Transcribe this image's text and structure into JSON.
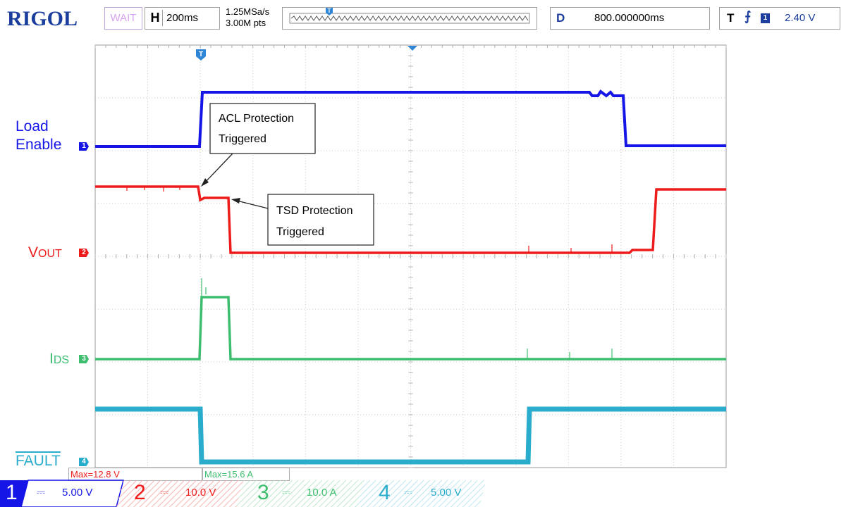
{
  "topbar": {
    "brand": "RIGOL",
    "status": "WAIT",
    "horizontal_key": "H",
    "horizontal_scale": "200ms",
    "sample_rate": "1.25MSa/s",
    "memory_depth": "3.00M pts",
    "delay_key": "D",
    "delay_value": "800.000000ms",
    "trigger_key": "T",
    "trigger_channel": "1",
    "trigger_level": "2.40 V"
  },
  "labels": {
    "load_line1": "Load",
    "load_line2": "Enable",
    "vout_v": "V",
    "vout_sub": "OUT",
    "ids_i": "I",
    "ids_sub": "DS",
    "fault": "FAULT"
  },
  "markers": {
    "ch1": "1",
    "ch2": "2",
    "ch3": "3",
    "ch4": "4",
    "trigger": "T"
  },
  "annotations": {
    "acl_line1": "ACL Protection",
    "acl_line2": "Triggered",
    "tsd_line1": "TSD Protection",
    "tsd_line2": "Triggered"
  },
  "measurements": {
    "ch2_max": "Max=12.8 V",
    "ch3_max": "Max=15.6 A"
  },
  "channels": [
    {
      "num": "1",
      "coupling": "⎓",
      "scale": "5.00 V",
      "color": "#1515e8"
    },
    {
      "num": "2",
      "coupling": "⎓",
      "scale": "10.0 V",
      "color": "#ee1b1b"
    },
    {
      "num": "3",
      "coupling": "⎓",
      "scale": "10.0 A",
      "color": "#3dbd6e"
    },
    {
      "num": "4",
      "coupling": "⎓",
      "scale": "5.00 V",
      "color": "#2aaccc"
    }
  ],
  "colors": {
    "brand": "#1a3d9e",
    "ch1": "#1515e8",
    "ch2": "#ee1b1b",
    "ch3": "#3dbd6e",
    "ch4": "#2aaccc",
    "grid": "#c8c8c8"
  }
}
